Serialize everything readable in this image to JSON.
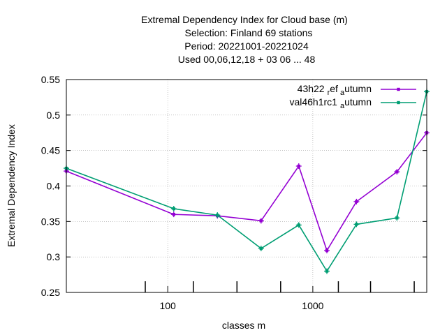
{
  "chart_data": {
    "type": "line",
    "title_lines": [
      "Extremal Dependency Index  for Cloud base (m)",
      "Selection: Finland     69 stations",
      "Period: 20221001-20221024",
      "Used  00,06,12,18  + 03 06 ... 48"
    ],
    "xlabel": "classes m",
    "ylabel": "Extremal Dependency Index",
    "x_scale": "log",
    "xlim": [
      20,
      6100
    ],
    "ylim": [
      0.25,
      0.55
    ],
    "y_ticks": [
      "0.25",
      "0.3",
      "0.35",
      "0.4",
      "0.45",
      "0.5",
      "0.55"
    ],
    "x_major_ticks": [
      {
        "value": 100,
        "label": "100"
      },
      {
        "value": 1000,
        "label": "1000"
      }
    ],
    "x_class_ticks": [
      70,
      150,
      300,
      600,
      1500,
      2500,
      5000
    ],
    "grid": true,
    "legend_position": "top-right",
    "x": [
      20,
      110,
      220,
      440,
      800,
      1250,
      2000,
      3800,
      6100
    ],
    "series": [
      {
        "name": "43h22",
        "name_sub1": "r",
        "name_mid": "ef",
        "name_sub2": "a",
        "name_tail": "utumn",
        "color": "#9400d3",
        "values": [
          0.421,
          0.36,
          0.358,
          0.351,
          0.428,
          0.309,
          0.378,
          0.42,
          0.475
        ]
      },
      {
        "name": "val46h1rc1",
        "name_sub1": "a",
        "name_tail": "utumn",
        "color": "#009e73",
        "values": [
          0.425,
          0.368,
          0.359,
          0.312,
          0.345,
          0.28,
          0.346,
          0.355,
          0.533
        ]
      }
    ]
  }
}
